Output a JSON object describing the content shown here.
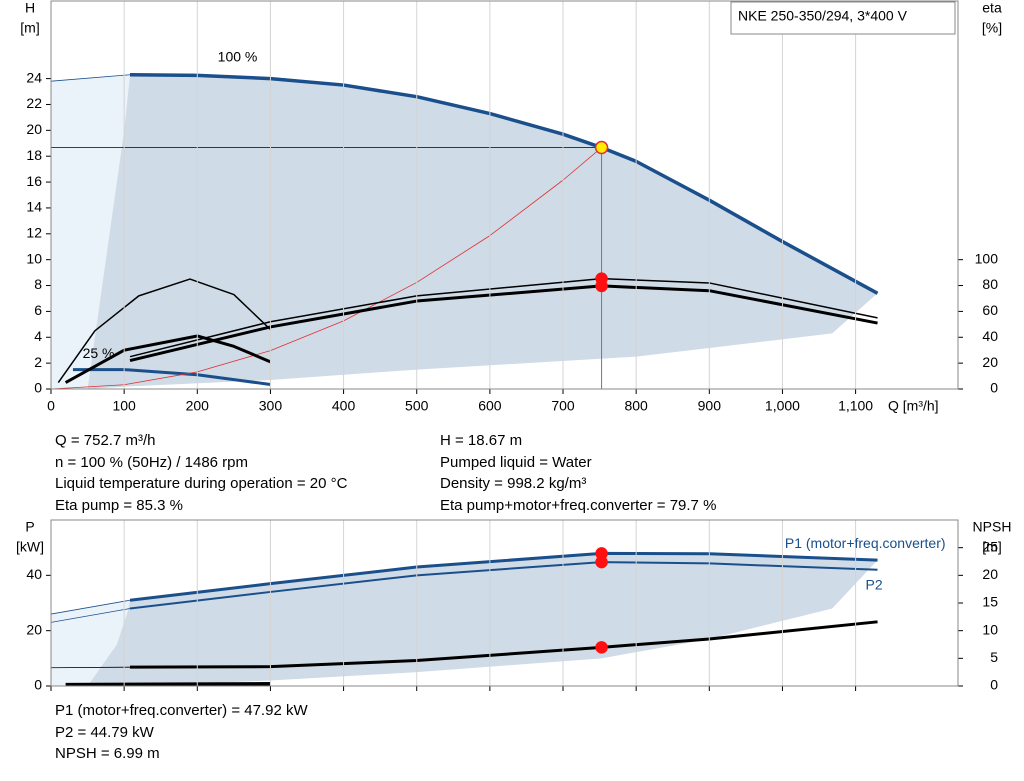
{
  "chart_data": [
    {
      "type": "line",
      "title": "NKE 250-350/294, 3*400 V",
      "ylabel": "H",
      "yunit": "[m]",
      "y2label": "eta",
      "y2unit": "[%]",
      "xlabel": "Q [m³/h]",
      "xlim": [
        0,
        1240
      ],
      "ylim": [
        0,
        30
      ],
      "y2lim": [
        0,
        300
      ],
      "xticks": [
        0,
        100,
        200,
        300,
        400,
        500,
        600,
        700,
        800,
        900,
        {
          "value": 1000,
          "label": "1,000"
        },
        {
          "value": 1100,
          "label": "1,100"
        }
      ],
      "yticks": [
        0,
        2,
        4,
        6,
        8,
        10,
        12,
        14,
        16,
        18,
        20,
        22,
        24
      ],
      "y2ticks": [
        0,
        20,
        40,
        60,
        80,
        100
      ],
      "grid": true,
      "show_xtick_labels": true,
      "crosshair": true,
      "regions": [
        {
          "color": "#eaf2fa",
          "x": [
            0,
            108,
            100,
            75,
            50,
            0
          ],
          "y": [
            23.8,
            24.3,
            20,
            10,
            0,
            0
          ]
        },
        {
          "color": "#cfdbe7",
          "x": [
            108,
            200,
            300,
            400,
            500,
            600,
            700,
            752.7,
            800,
            900,
            1000,
            1130,
            1068,
            800,
            500,
            300,
            108,
            50,
            75,
            100
          ],
          "y": [
            24.3,
            24.25,
            24,
            23.5,
            22.6,
            21.3,
            19.7,
            18.67,
            17.6,
            14.6,
            11.4,
            7.4,
            4.3,
            2.5,
            1.5,
            0.7,
            0.2,
            0,
            10,
            20
          ]
        }
      ],
      "series": [
        {
          "color": "#1a4f8b",
          "width": 0.8,
          "x": [
            0,
            108
          ],
          "values": [
            23.8,
            24.3
          ]
        },
        {
          "color": "#1a4f8b",
          "width": 3.5,
          "x": [
            108,
            200,
            300,
            400,
            500,
            600,
            700,
            752.7,
            800,
            900,
            1000,
            1130
          ],
          "values": [
            24.3,
            24.25,
            24,
            23.5,
            22.6,
            21.3,
            19.7,
            18.67,
            17.6,
            14.6,
            11.4,
            7.4
          ]
        },
        {
          "color": "#1a4f8b",
          "width": 3,
          "x": [
            30,
            100,
            200,
            300
          ],
          "values": [
            1.5,
            1.5,
            1.1,
            0.35
          ]
        },
        {
          "color": "#e03030",
          "width": 0.8,
          "x": [
            0,
            100,
            200,
            300,
            400,
            500,
            600,
            700,
            752.7
          ],
          "values": [
            0,
            0.33,
            1.32,
            2.97,
            5.27,
            8.24,
            11.86,
            16.15,
            18.67
          ]
        },
        {
          "color": "#000000",
          "width": 1.5,
          "axis": "y2",
          "x": [
            10,
            60,
            120,
            190,
            250,
            300
          ],
          "values": [
            5,
            45,
            72,
            85,
            73,
            46
          ]
        },
        {
          "color": "#000000",
          "width": 3,
          "axis": "y2",
          "x": [
            20,
            100,
            200,
            250,
            300
          ],
          "values": [
            5,
            30,
            41,
            33,
            21
          ]
        },
        {
          "color": "#000000",
          "width": 1.5,
          "axis": "y2",
          "x": [
            108,
            300,
            500,
            752.7,
            900,
            1130
          ],
          "values": [
            25,
            52,
            72,
            85.3,
            82,
            55
          ]
        },
        {
          "color": "#000000",
          "width": 3,
          "axis": "y2",
          "x": [
            108,
            300,
            500,
            752.7,
            900,
            1130
          ],
          "values": [
            22,
            48,
            68,
            79.7,
            76,
            51
          ]
        }
      ],
      "points": [
        {
          "x": 752.7,
          "y": 18.67,
          "color": "#ffee00",
          "stroke": "#e03030"
        },
        {
          "x": 752.7,
          "y": 85.3,
          "axis": "y2",
          "color": "#ff1010",
          "stroke": "#ff1010"
        },
        {
          "x": 752.7,
          "y": 79.7,
          "axis": "y2",
          "color": "#ff1010",
          "stroke": "#ff1010"
        }
      ],
      "annotations": [
        {
          "text": "100 %",
          "x": 255,
          "y": 25.6
        },
        {
          "text": "25 %",
          "x": 65,
          "y": 2.7
        }
      ]
    },
    {
      "type": "line",
      "ylabel": "P",
      "yunit": "[kW]",
      "y2label": "NPSH",
      "y2unit": "[m]",
      "xlim": [
        0,
        1240
      ],
      "ylim": [
        0,
        60
      ],
      "y2lim": [
        0,
        30
      ],
      "xticks": [
        0,
        100,
        200,
        300,
        400,
        500,
        600,
        700,
        800,
        900,
        1000,
        1100
      ],
      "yticks": [
        0,
        20,
        40
      ],
      "y2ticks": [
        0,
        5,
        10,
        15,
        20,
        25
      ],
      "grid": true,
      "show_xtick_labels": false,
      "crosshair": false,
      "regions": [
        {
          "color": "#eaf2fa",
          "x": [
            0,
            108,
            105,
            90,
            50,
            0
          ],
          "y": [
            26,
            31,
            27,
            15,
            0,
            0
          ]
        },
        {
          "color": "#cfdbe7",
          "x": [
            108,
            300,
            500,
            752.7,
            900,
            1130,
            1068,
            900,
            752.7,
            500,
            300,
            108,
            50,
            90,
            105
          ],
          "y": [
            31,
            37,
            43,
            47.92,
            47.8,
            45.5,
            28,
            17,
            10,
            5,
            2,
            0,
            0,
            15,
            27
          ]
        }
      ],
      "series": [
        {
          "color": "#1a4f8b",
          "width": 0.8,
          "x": [
            0,
            108
          ],
          "values": [
            26,
            31
          ]
        },
        {
          "color": "#1a4f8b",
          "width": 0.8,
          "x": [
            0,
            108
          ],
          "values": [
            23,
            28
          ]
        },
        {
          "color": "#000000",
          "width": 0.8,
          "axis": "y2",
          "x": [
            0,
            108
          ],
          "values": [
            3.3,
            3.4
          ]
        },
        {
          "name": "P1 (motor+freq.converter)",
          "color": "#1a4f8b",
          "width": 3,
          "x": [
            108,
            300,
            500,
            752.7,
            900,
            1130
          ],
          "values": [
            31,
            37,
            43,
            47.92,
            47.8,
            45.5
          ]
        },
        {
          "name": "P2",
          "color": "#1a4f8b",
          "width": 2,
          "x": [
            108,
            300,
            500,
            752.7,
            900,
            1130
          ],
          "values": [
            28,
            34,
            40,
            44.79,
            44.3,
            42
          ]
        },
        {
          "color": "#000000",
          "width": 3,
          "axis": "y2",
          "x": [
            108,
            300,
            500,
            752.7,
            900,
            1130
          ],
          "values": [
            3.4,
            3.5,
            4.6,
            6.99,
            8.5,
            11.6
          ]
        },
        {
          "color": "#000000",
          "width": 3.5,
          "x": [
            20,
            300
          ],
          "values": [
            0.5,
            0.8
          ]
        }
      ],
      "points": [
        {
          "x": 752.7,
          "y": 47.92,
          "color": "#ff1010",
          "stroke": "#ff1010"
        },
        {
          "x": 752.7,
          "y": 44.79,
          "color": "#ff1010",
          "stroke": "#ff1010"
        },
        {
          "x": 752.7,
          "y": 6.99,
          "axis": "y2",
          "color": "#ff1010",
          "stroke": "#ff1010"
        }
      ],
      "annotations": []
    }
  ],
  "info": {
    "left": [
      "Q = 752.7 m³/h",
      "n = 100 % (50Hz) / 1486 rpm",
      "Liquid temperature during operation = 20 °C",
      "Eta pump = 85.3 %"
    ],
    "right": [
      "H = 18.67 m",
      "Pumped liquid = Water",
      "Density = 998.2 kg/m³",
      "Eta pump+motor+freq.converter = 79.7 %"
    ],
    "bottom": [
      "P1 (motor+freq.converter) = 47.92 kW",
      "P2 = 44.79 kW",
      "NPSH = 6.99 m"
    ]
  }
}
